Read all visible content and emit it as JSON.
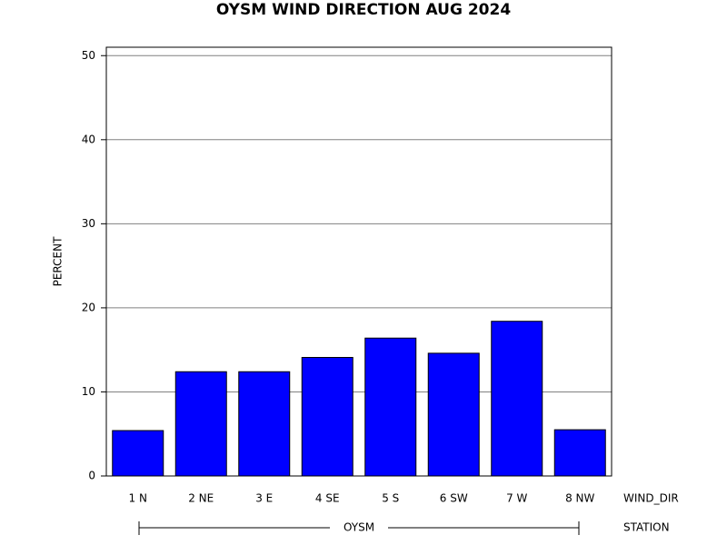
{
  "chart_data": {
    "type": "bar",
    "title": "OYSM WIND DIRECTION AUG 2024",
    "y_label": "PERCENT",
    "x_label": "WIND_DIR",
    "group_label": "STATION",
    "group": "OYSM",
    "categories": [
      "1 N",
      "2 NE",
      "3 E",
      "4 SE",
      "5 S",
      "6 SW",
      "7 W",
      "8 NW"
    ],
    "values": [
      5.4,
      12.4,
      12.4,
      14.1,
      16.4,
      14.6,
      18.4,
      5.5
    ],
    "color": "#0000ff",
    "ylim": [
      0,
      51
    ],
    "yticks": [
      0,
      10,
      20,
      30,
      40,
      50
    ],
    "grid": true
  }
}
